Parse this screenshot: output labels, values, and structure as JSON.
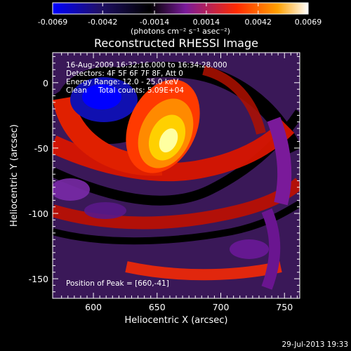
{
  "plot": {
    "title": "Reconstructed RHESSI Image",
    "xlabel": "Heliocentric X (arcsec)",
    "ylabel": "Heliocentric Y (arcsec)",
    "x_ticks": [
      "600",
      "650",
      "700",
      "750"
    ],
    "y_ticks": [
      "0",
      "-50",
      "-100",
      "-150"
    ],
    "xlim": [
      568,
      762
    ],
    "ylim": [
      -165,
      23
    ]
  },
  "colorbar": {
    "unit_label": "(photons cm⁻² s⁻¹ asec⁻²)",
    "ticks": [
      "-0.0069",
      "-0.0042",
      "-0.0014",
      "0.0014",
      "0.0042",
      "0.0069"
    ],
    "range": [
      -0.0069,
      0.0069
    ],
    "colors": [
      "#0000ff",
      "#1a0033",
      "#000000",
      "#7a1a9a",
      "#ff2a00",
      "#ff9a00",
      "#ffffff"
    ]
  },
  "annotations": {
    "time_range": "16-Aug-2009 16:32:16.000 to 16:34:28.000",
    "detectors": "Detectors: 4F 5F 6F 7F 8F, Att 0",
    "energy": "Energy Range: 12.0 - 25.0 keV",
    "method": "Clean",
    "counts": "Total counts: 5.09E+04",
    "peak": "Position of Peak = [660,-41]"
  },
  "timestamp": "29-Jul-2013 19:33",
  "chart_data": {
    "type": "heatmap",
    "title": "Reconstructed RHESSI Image",
    "xlabel": "Heliocentric X (arcsec)",
    "ylabel": "Heliocentric Y (arcsec)",
    "xlim": [
      568,
      762
    ],
    "ylim": [
      -165,
      23
    ],
    "value_range": [
      -0.0069,
      0.0069
    ],
    "peak": [
      660,
      -41
    ]
  }
}
